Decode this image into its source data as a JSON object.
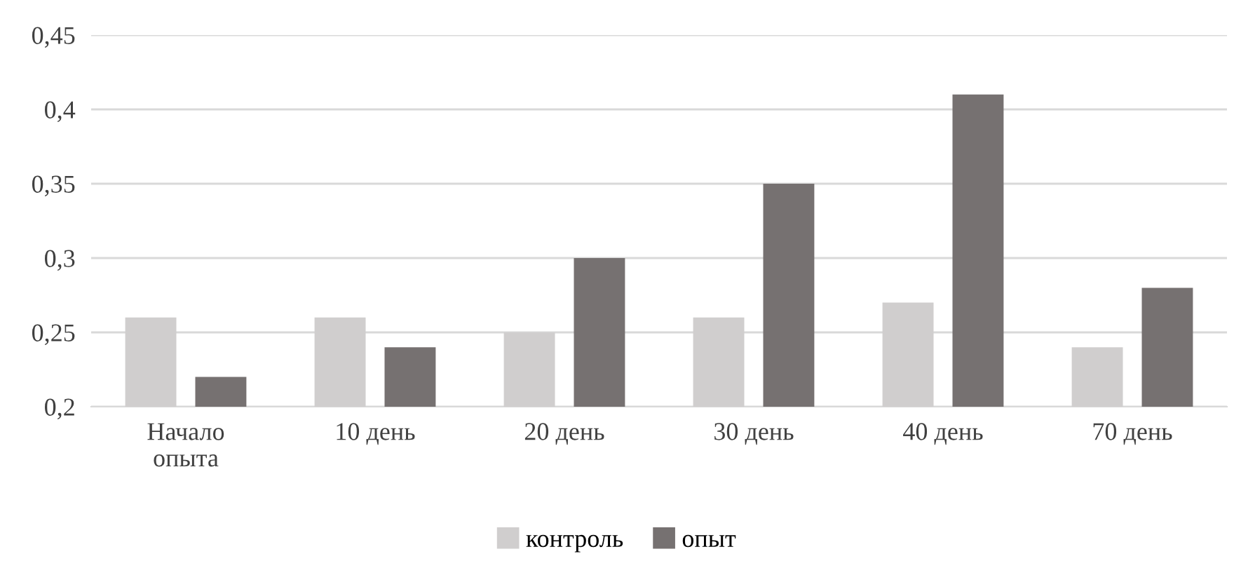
{
  "chart_data": {
    "type": "bar",
    "categories": [
      "Начало\nопыта",
      "10 день",
      "20 день",
      "30 день",
      "40 день",
      "70 день"
    ],
    "series": [
      {
        "name": "контроль",
        "color": "#d0cece",
        "values": [
          0.26,
          0.26,
          0.25,
          0.26,
          0.27,
          0.24
        ]
      },
      {
        "name": "опыт",
        "color": "#767171",
        "values": [
          0.22,
          0.24,
          0.3,
          0.35,
          0.41,
          0.28
        ]
      }
    ],
    "ylim": [
      0.2,
      0.45
    ],
    "yticks": [
      {
        "value": 0.2,
        "label": "0,2"
      },
      {
        "value": 0.25,
        "label": "0,25"
      },
      {
        "value": 0.3,
        "label": "0,3"
      },
      {
        "value": 0.35,
        "label": "0,35"
      },
      {
        "value": 0.4,
        "label": "0,4"
      },
      {
        "value": 0.45,
        "label": "0,45"
      }
    ],
    "grid": "y",
    "legend": "bottom"
  }
}
